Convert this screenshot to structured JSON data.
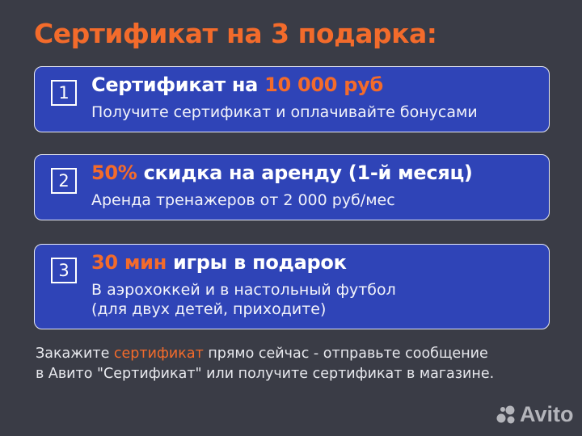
{
  "title": "Сертификат на 3 подарка:",
  "cards": [
    {
      "number": "1",
      "head_pre": "Сертификат на ",
      "head_accent": "10 000 руб",
      "head_post": "",
      "lines": [
        "Получите сертификат и оплачивайте бонусами"
      ]
    },
    {
      "number": "2",
      "head_pre": "",
      "head_accent": "50%",
      "head_post": " скидка на аренду (1-й месяц)",
      "lines": [
        "Аренда тренажеров от 2 000 руб/мес"
      ]
    },
    {
      "number": "3",
      "head_pre": "",
      "head_accent": "30 мин",
      "head_post": " игры в подарок",
      "lines": [
        "В аэрохоккей и в настольный футбол",
        "(для двух детей, приходите)"
      ]
    }
  ],
  "footer": {
    "line1_pre": "Закажите ",
    "line1_accent": "сертификат",
    "line1_post": " прямо сейчас - отправьте сообщение",
    "line2": "в Авито \"Сертификат\" или получите сертификат в магазине."
  },
  "watermark": "Avito",
  "colors": {
    "accent": "#f36b2b",
    "card": "#2f44b7",
    "background": "#3a3c46"
  }
}
